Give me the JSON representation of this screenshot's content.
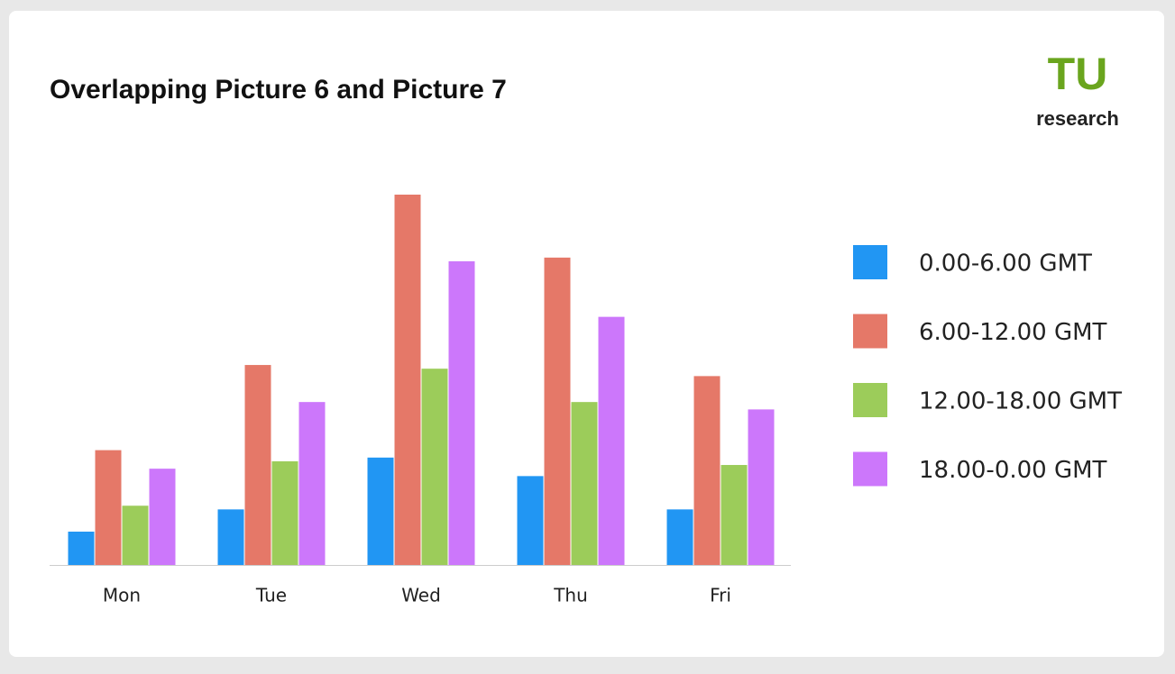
{
  "chart_data": {
    "type": "bar",
    "title": "Overlapping Picture 6 and Picture 7",
    "categories": [
      "Mon",
      "Tue",
      "Wed",
      "Thu",
      "Fri"
    ],
    "series": [
      {
        "name": "0.00-6.00 GMT",
        "color": "#2196f3",
        "values": [
          9,
          15,
          29,
          24,
          15
        ]
      },
      {
        "name": "6.00-12.00 GMT",
        "color": "#e57868",
        "values": [
          31,
          54,
          100,
          83,
          51
        ]
      },
      {
        "name": "12.00-18.00 GMT",
        "color": "#9ccc5a",
        "values": [
          16,
          28,
          53,
          44,
          27
        ]
      },
      {
        "name": "18.00-0.00 GMT",
        "color": "#cc77fb",
        "values": [
          26,
          44,
          82,
          67,
          42
        ]
      }
    ],
    "ylim": [
      0,
      100
    ],
    "legend": "right"
  },
  "logo": {
    "top": "TU",
    "bottom": "research"
  }
}
